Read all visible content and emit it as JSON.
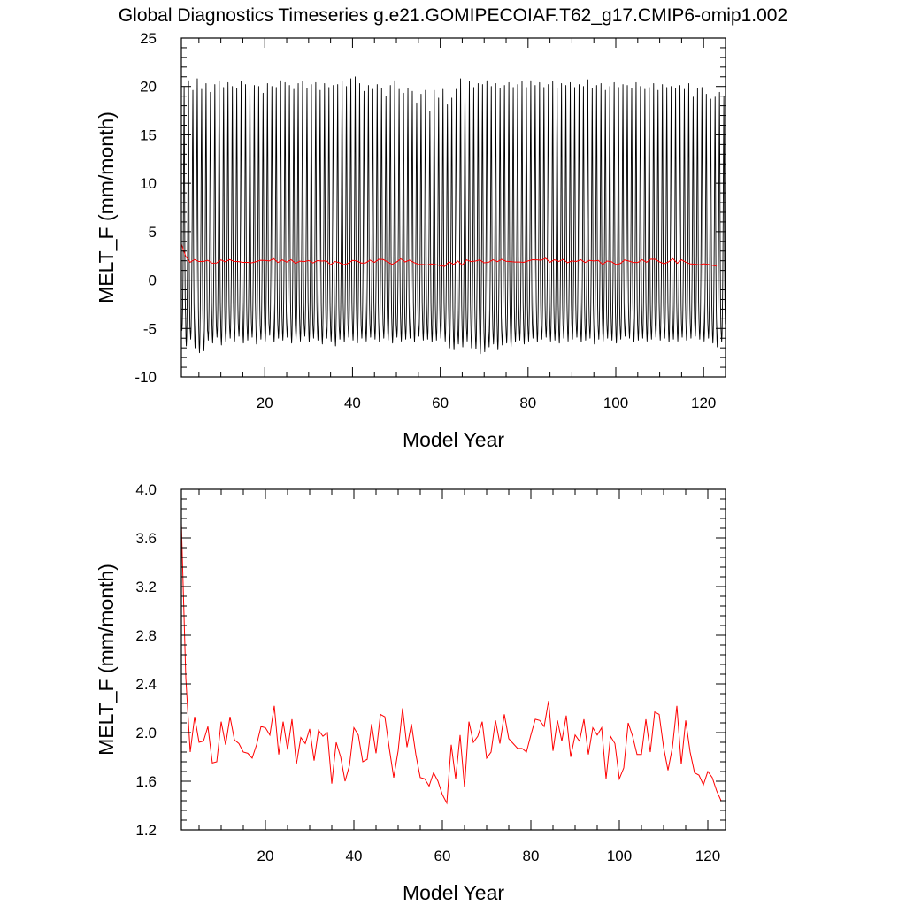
{
  "title": "Global Diagnostics Timeseries g.e21.GOMIPECOIAF.T62_g17.CMIP6-omip1.002",
  "chart_data": [
    {
      "type": "line",
      "xlabel": "Model Year",
      "ylabel": "MELT_F (mm/month)",
      "xlim": [
        1,
        125
      ],
      "ylim": [
        -10,
        25
      ],
      "xticks": [
        20,
        40,
        60,
        80,
        100,
        120
      ],
      "yticks": [
        -10,
        -5,
        0,
        5,
        10,
        15,
        20,
        25
      ],
      "xtick_labels": [
        "20",
        "40",
        "60",
        "80",
        "100",
        "120"
      ],
      "ytick_labels": [
        "-10",
        "-5",
        "0",
        "5",
        "10",
        "15",
        "20",
        "25"
      ],
      "zero_line": 0,
      "series": [
        {
          "color": "#000000",
          "resolution": "monthly",
          "monthly_cycle_base": [
            -4.6,
            -5.2,
            -4.5,
            -2.7,
            0.4,
            5.8,
            13.6,
            18.8,
            11.8,
            2.3,
            -2.1,
            -3.7
          ],
          "annual_peak": [
            20.0,
            20.6,
            19.6,
            20.8,
            19.7,
            20.3,
            19.4,
            20.2,
            20.6,
            19.9,
            20.4,
            20.0,
            19.8,
            20.5,
            20.2,
            20.4,
            20.1,
            20.0,
            19.3,
            20.3,
            20.0,
            19.9,
            20.6,
            20.4,
            20.1,
            19.7,
            20.3,
            20.5,
            19.8,
            20.2,
            20.4,
            19.6,
            20.3,
            19.9,
            20.1,
            20.2,
            20.6,
            20.0,
            20.8,
            21.0,
            20.3,
            19.5,
            20.1,
            19.7,
            20.2,
            19.8,
            19.0,
            20.1,
            20.6,
            19.7,
            19.3,
            19.8,
            19.5,
            18.3,
            19.2,
            19.6,
            17.4,
            19.6,
            18.8,
            19.7,
            18.1,
            18.8,
            19.7,
            20.8,
            19.6,
            20.5,
            19.9,
            20.3,
            20.2,
            20.6,
            20.0,
            20.3,
            19.8,
            20.1,
            20.4,
            19.9,
            20.2,
            20.5,
            19.9,
            20.6,
            20.1,
            20.4,
            19.9,
            20.2,
            20.5,
            19.8,
            20.3,
            20.1,
            20.4,
            19.9,
            20.2,
            20.0,
            20.7,
            19.8,
            20.1,
            20.3,
            19.6,
            20.0,
            20.4,
            19.9,
            20.2,
            20.1,
            19.8,
            20.4,
            20.0,
            19.7,
            19.9,
            20.3,
            19.6,
            20.2,
            19.9,
            20.0,
            19.8,
            20.1,
            19.7,
            20.3,
            18.9,
            19.8,
            19.9,
            19.2,
            18.7,
            18.9,
            19.4,
            19.0,
            19.5
          ],
          "annual_trough": [
            -5.2,
            -6.8,
            -6.1,
            -7.0,
            -7.5,
            -7.3,
            -6.2,
            -6.5,
            -5.9,
            -6.7,
            -6.4,
            -6.0,
            -6.3,
            -5.8,
            -6.5,
            -6.2,
            -5.9,
            -6.6,
            -6.1,
            -6.3,
            -5.7,
            -6.4,
            -6.0,
            -6.2,
            -5.9,
            -6.5,
            -6.1,
            -6.3,
            -5.8,
            -6.4,
            -6.0,
            -6.2,
            -6.6,
            -6.0,
            -6.3,
            -6.8,
            -6.1,
            -6.4,
            -5.9,
            -6.2,
            -6.5,
            -6.0,
            -6.3,
            -5.9,
            -6.1,
            -6.4,
            -6.0,
            -6.2,
            -6.5,
            -5.9,
            -6.3,
            -6.1,
            -6.0,
            -6.4,
            -5.8,
            -6.2,
            -6.1,
            -6.4,
            -6.2,
            -6.0,
            -6.3,
            -7.0,
            -7.2,
            -6.6,
            -6.9,
            -6.3,
            -7.0,
            -7.1,
            -7.6,
            -7.4,
            -6.9,
            -6.6,
            -7.2,
            -6.7,
            -6.5,
            -6.9,
            -6.4,
            -6.2,
            -6.6,
            -6.3,
            -6.0,
            -6.4,
            -6.1,
            -5.9,
            -6.3,
            -6.2,
            -6.5,
            -6.0,
            -6.3,
            -6.1,
            -5.9,
            -6.4,
            -6.2,
            -6.0,
            -6.6,
            -6.1,
            -6.3,
            -6.0,
            -6.2,
            -6.5,
            -6.1,
            -5.8,
            -6.0,
            -6.4,
            -6.2,
            -6.0,
            -6.3,
            -6.1,
            -5.9,
            -6.2,
            -6.0,
            -6.4,
            -6.1,
            -6.3,
            -5.9,
            -6.2,
            -6.0,
            -5.8,
            -6.1,
            -6.3,
            -6.0,
            -6.5,
            -6.9,
            -6.4,
            -6.6
          ]
        },
        {
          "color": "#ff0000",
          "resolution": "annual",
          "values_ref": "annual_mean"
        }
      ]
    },
    {
      "type": "line",
      "xlabel": "Model Year",
      "ylabel": "MELT_F (mm/month)",
      "xlim": [
        1,
        124
      ],
      "ylim": [
        1.2,
        4.0
      ],
      "xticks": [
        20,
        40,
        60,
        80,
        100,
        120
      ],
      "yticks": [
        1.2,
        1.6,
        2.0,
        2.4,
        2.8,
        3.2,
        3.6,
        4.0
      ],
      "xtick_labels": [
        "20",
        "40",
        "60",
        "80",
        "100",
        "120"
      ],
      "ytick_labels": [
        "1.2",
        "1.6",
        "2.0",
        "2.4",
        "2.8",
        "3.2",
        "3.6",
        "4.0"
      ],
      "series": [
        {
          "color": "#ff0000",
          "resolution": "annual",
          "x_start": 1,
          "values": [
            3.72,
            2.45,
            1.84,
            2.13,
            1.92,
            1.93,
            2.05,
            1.75,
            1.76,
            2.09,
            1.9,
            2.13,
            1.94,
            1.91,
            1.84,
            1.83,
            1.79,
            1.9,
            2.05,
            2.04,
            1.98,
            2.22,
            1.82,
            2.09,
            1.86,
            2.11,
            1.74,
            1.96,
            1.91,
            2.03,
            1.77,
            2.02,
            1.97,
            2.0,
            1.58,
            1.92,
            1.8,
            1.6,
            1.73,
            2.04,
            1.98,
            1.76,
            1.78,
            2.07,
            1.83,
            2.15,
            2.13,
            1.87,
            1.63,
            1.85,
            2.2,
            1.88,
            2.07,
            1.82,
            1.63,
            1.62,
            1.56,
            1.67,
            1.6,
            1.49,
            1.42,
            1.9,
            1.62,
            1.98,
            1.55,
            2.09,
            1.92,
            1.97,
            2.09,
            1.79,
            1.84,
            2.1,
            1.91,
            2.15,
            1.95,
            1.91,
            1.87,
            1.87,
            1.84,
            1.98,
            2.11,
            2.1,
            2.05,
            2.26,
            1.85,
            2.1,
            1.93,
            2.14,
            1.8,
            1.98,
            1.93,
            2.11,
            1.82,
            2.04,
            1.98,
            2.04,
            1.62,
            1.97,
            1.91,
            1.62,
            1.71,
            2.08,
            1.97,
            1.82,
            1.82,
            2.11,
            1.84,
            2.17,
            2.15,
            1.88,
            1.69,
            1.88,
            2.22,
            1.74,
            2.1,
            1.84,
            1.67,
            1.65,
            1.57,
            1.68,
            1.63,
            1.52,
            1.44
          ]
        }
      ]
    }
  ]
}
